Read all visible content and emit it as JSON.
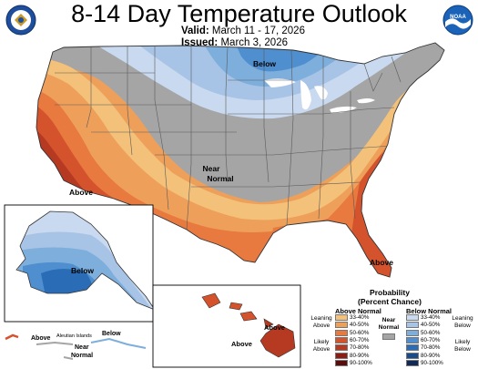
{
  "header": {
    "title": "8-14 Day Temperature Outlook",
    "valid_label": "Valid:",
    "valid_value": "March 11 - 17, 2026",
    "issued_label": "Issued:",
    "issued_value": "March 3, 2026"
  },
  "logos": {
    "left": "department-seal",
    "right": "NOAA"
  },
  "map_labels": {
    "below_north": "Below",
    "near_normal": "Near\nNormal",
    "above_sw": "Above",
    "above_fl": "Above",
    "alaska_below": "Below",
    "hawaii_above": "Above",
    "aleutian_above": "Above",
    "aleutian_near": "Near\nNormal",
    "aleutian_below": "Below",
    "aleutian_islands": "Aleutian Islands"
  },
  "legend": {
    "title": "Probability\n(Percent Chance)",
    "above_header": "Above Normal",
    "below_header": "Below Normal",
    "near_label": "Near\nNormal",
    "leaning_above": "Leaning\nAbove",
    "likely_above": "Likely\nAbove",
    "leaning_below": "Leaning\nBelow",
    "likely_below": "Likely\nBelow",
    "above_bins": [
      {
        "label": "33-40%",
        "color": "#f3c17a"
      },
      {
        "label": "40-50%",
        "color": "#eea05a"
      },
      {
        "label": "50-60%",
        "color": "#e8793f"
      },
      {
        "label": "60-70%",
        "color": "#d4532c"
      },
      {
        "label": "70-80%",
        "color": "#b63a22"
      },
      {
        "label": "80-90%",
        "color": "#8c1d15"
      },
      {
        "label": "90-100%",
        "color": "#5a0d0b"
      }
    ],
    "below_bins": [
      {
        "label": "33-40%",
        "color": "#c9d9ef"
      },
      {
        "label": "40-50%",
        "color": "#a7c4e6"
      },
      {
        "label": "50-60%",
        "color": "#7eaedc"
      },
      {
        "label": "60-70%",
        "color": "#4f8fcf"
      },
      {
        "label": "70-80%",
        "color": "#2a6db6"
      },
      {
        "label": "80-90%",
        "color": "#194a8a"
      },
      {
        "label": "90-100%",
        "color": "#102a55"
      }
    ],
    "near_color": "#a5a5a5"
  }
}
